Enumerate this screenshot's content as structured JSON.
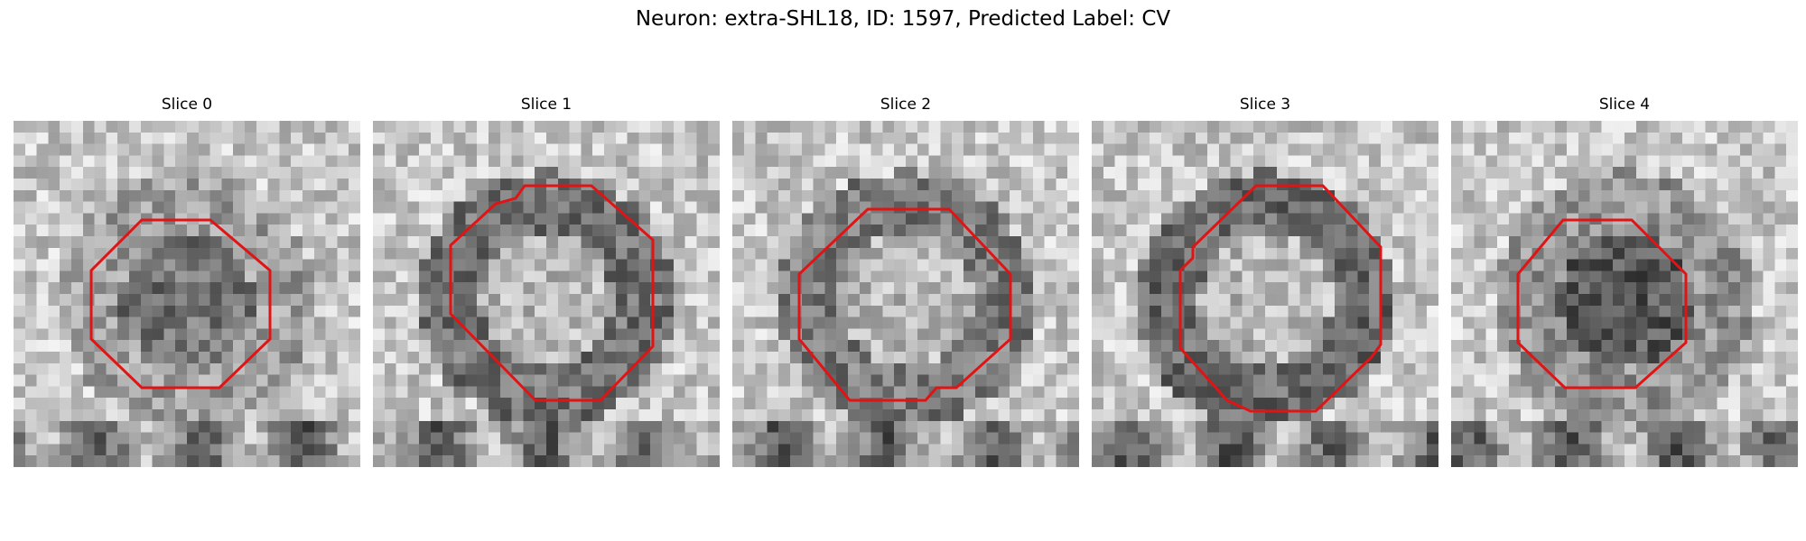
{
  "figure": {
    "title": "Neuron: extra-SHL18, ID: 1597, Predicted Label: CV",
    "outline_color": "#e01414"
  },
  "panels": [
    {
      "label": "Slice 0",
      "seed": 11,
      "ring": 0.62,
      "inner": 0.45
    },
    {
      "label": "Slice 1",
      "seed": 23,
      "ring": 0.45,
      "inner": 0.72
    },
    {
      "label": "Slice 2",
      "seed": 37,
      "ring": 0.48,
      "inner": 0.72
    },
    {
      "label": "Slice 3",
      "seed": 49,
      "ring": 0.42,
      "inner": 0.72
    },
    {
      "label": "Slice 4",
      "seed": 61,
      "ring": 0.58,
      "inner": 0.35
    }
  ]
}
